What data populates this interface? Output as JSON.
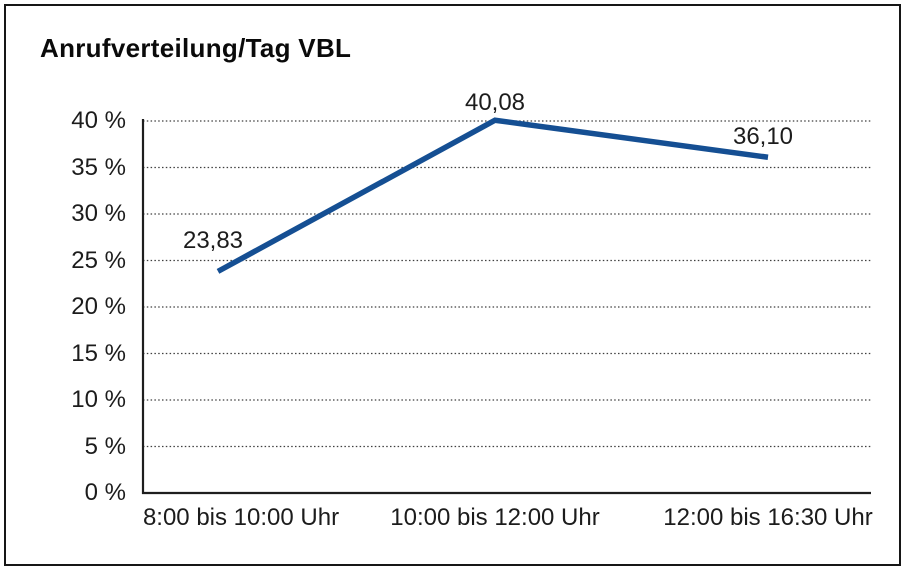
{
  "window": {
    "background_color": "#ffffff",
    "border_color": "#161616"
  },
  "chart": {
    "title": "Anrufverteilung/Tag VBL"
  },
  "chart_data": {
    "type": "line",
    "title": "Anrufverteilung/Tag VBL",
    "categories": [
      "8:00 bis 10:00 Uhr",
      "10:00 bis 12:00 Uhr",
      "12:00 bis 16:30 Uhr"
    ],
    "values": [
      23.83,
      40.08,
      36.1
    ],
    "data_labels": [
      "23,83",
      "40,08",
      "36,10"
    ],
    "y_tick_labels": [
      "0 %",
      "5 %",
      "10 %",
      "15 %",
      "20 %",
      "25 %",
      "30 %",
      "35 %",
      "40 %"
    ],
    "ylim": [
      0,
      40
    ],
    "y_tick_step": 5,
    "xlabel": "",
    "ylabel": "",
    "grid": "horizontal-dotted",
    "gridline_color": "#3f3f3f",
    "axis_color": "#1e1e1e",
    "legend": "none",
    "line_color": "#154F93",
    "text_color": "#1c1c1c"
  }
}
